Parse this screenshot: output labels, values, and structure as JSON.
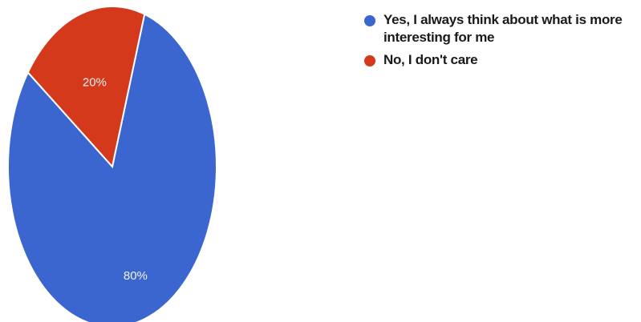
{
  "chart_data": {
    "type": "pie",
    "categories": [
      "Yes, I always think about what is more interesting for me",
      "No, I don't care"
    ],
    "values": [
      80,
      20
    ],
    "labels": [
      "80%",
      "20%"
    ],
    "colors": [
      "#3b66cf",
      "#d4391c"
    ],
    "legend_position": "top-right"
  }
}
